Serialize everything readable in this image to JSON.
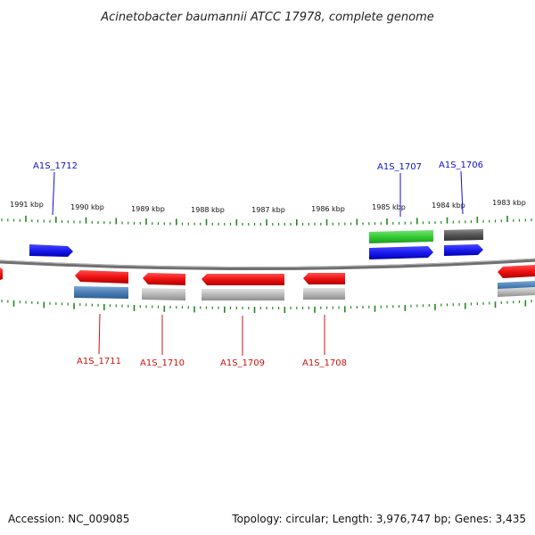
{
  "title": "Acinetobacter baumannii ATCC 17978, complete genome",
  "footer": {
    "accession": "Accession: NC_009085",
    "summary": "Topology: circular; Length: 3,976,747 bp; Genes: 3,435"
  },
  "colors": {
    "forward_cds": "#1a1aee",
    "reverse_cds": "#ee1111",
    "rna_gene": "#33cc33",
    "pseudogene": "#555555",
    "forward_gene_track": "#4a7fb5",
    "reverse_gene_track": "#b8b8b8",
    "backbone": "#777777",
    "ticks": "#228822",
    "upper_label": "#1111cc",
    "lower_label": "#cc1111"
  },
  "kbp_labels": [
    "1991 kbp",
    "1990 kbp",
    "1989 kbp",
    "1988 kbp",
    "1987 kbp",
    "1986 kbp",
    "1985 kbp",
    "1984 kbp",
    "1983 kbp"
  ],
  "genes": [
    {
      "id": "A1S_1712",
      "strand": "forward",
      "label": "A1S_1712",
      "labeled": true
    },
    {
      "id": "A1S_1707",
      "strand": "forward",
      "label": "A1S_1707",
      "labeled": true
    },
    {
      "id": "A1S_1706",
      "strand": "forward",
      "label": "A1S_1706",
      "labeled": true
    },
    {
      "id": "A1S_1711",
      "strand": "reverse",
      "label": "A1S_1711",
      "labeled": true
    },
    {
      "id": "A1S_1710",
      "strand": "reverse",
      "label": "A1S_1710",
      "labeled": true
    },
    {
      "id": "A1S_1709",
      "strand": "reverse",
      "label": "A1S_1709",
      "labeled": true
    },
    {
      "id": "A1S_1708",
      "strand": "reverse",
      "label": "A1S_1708",
      "labeled": true
    },
    {
      "id": "edge-right",
      "strand": "reverse",
      "label": "",
      "labeled": false
    },
    {
      "id": "edge-left",
      "strand": "reverse",
      "label": "",
      "labeled": false
    }
  ]
}
